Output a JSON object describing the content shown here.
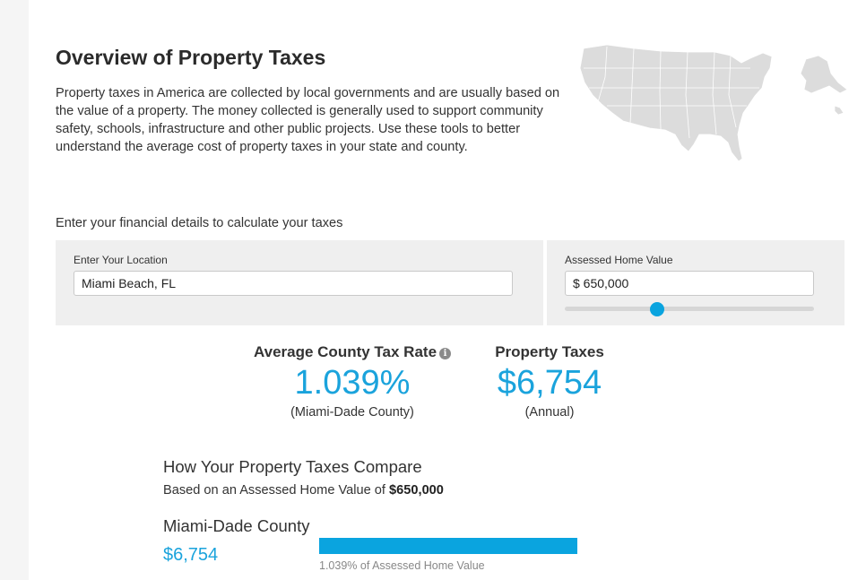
{
  "header": {
    "title": "Overview of Property Taxes",
    "intro": "Property taxes in America are collected by local governments and are usually based on the value of a property. The money collected is generally used to support community safety, schools, infrastructure and other public projects. Use these tools to better understand the average cost of property taxes in your state and county."
  },
  "calculator": {
    "prompt": "Enter your financial details to calculate your taxes",
    "location": {
      "label": "Enter Your Location",
      "value": "Miami Beach, FL"
    },
    "home_value": {
      "label": "Assessed Home Value",
      "value": "$ 650,000",
      "slider_fraction": 0.37
    }
  },
  "results": {
    "rate": {
      "heading": "Average County Tax Rate",
      "value": "1.039%",
      "subtitle": "(Miami-Dade County)",
      "icon": "info-icon"
    },
    "taxes": {
      "heading": "Property Taxes",
      "value": "$6,754",
      "subtitle": "(Annual)"
    }
  },
  "compare": {
    "title": "How Your Property Taxes Compare",
    "subtitle_prefix": "Based on an Assessed Home Value of ",
    "subtitle_value": "$650,000",
    "county": {
      "name": "Miami-Dade County",
      "amount": "$6,754",
      "bar_fraction": 0.55,
      "caption": "1.039% of Assessed Home Value"
    }
  },
  "colors": {
    "accent": "#0aa4df",
    "panel": "#efefef",
    "map": "#dcdcdc"
  }
}
